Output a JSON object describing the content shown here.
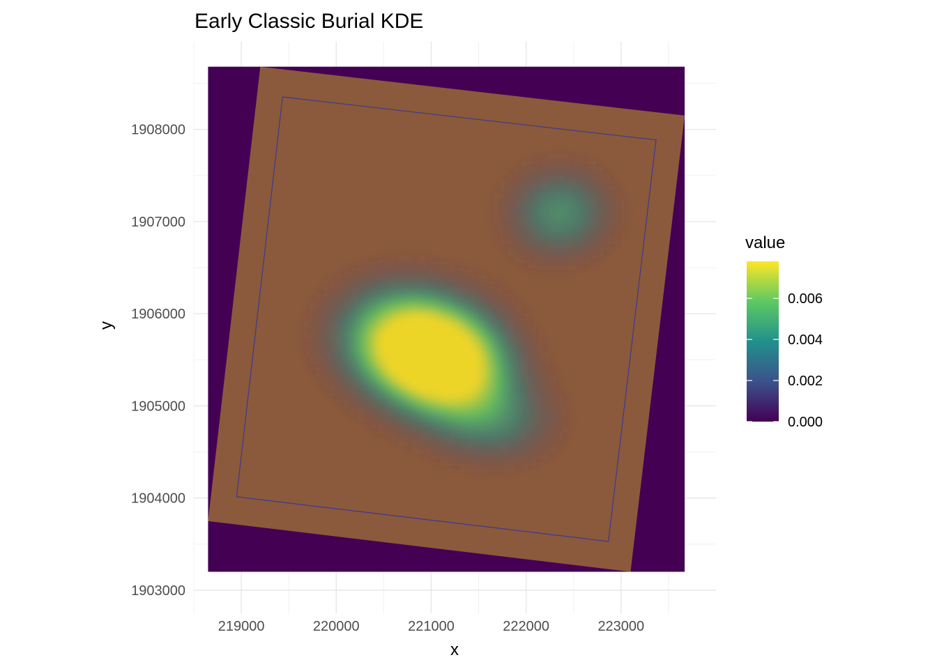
{
  "chart_data": {
    "type": "heatmap",
    "title": "Early Classic Burial KDE",
    "xlabel": "x",
    "ylabel": "y",
    "xlim": [
      218500,
      224000
    ],
    "ylim": [
      1902750,
      1908950
    ],
    "x_ticks": [
      219000,
      220000,
      221000,
      222000,
      223000
    ],
    "x_tick_labels": [
      "219000",
      "220000",
      "221000",
      "222000",
      "223000"
    ],
    "y_ticks": [
      1903000,
      1904000,
      1905000,
      1906000,
      1907000,
      1908000
    ],
    "y_tick_labels": [
      "1903000",
      "1904000",
      "1905000",
      "1906000",
      "1907000",
      "1908000"
    ],
    "grid": true,
    "raster_extent": {
      "xmin": 218650,
      "xmax": 223670,
      "ymin": 1903200,
      "ymax": 1908680
    },
    "basemap": {
      "description_shown": "rotated scanned archaeological site map overlay",
      "corners": [
        [
          219200,
          1908680
        ],
        [
          223670,
          1908150
        ],
        [
          223100,
          1903200
        ],
        [
          218650,
          1903750
        ]
      ],
      "tint": "#8b5a3c"
    },
    "kde_peaks": [
      {
        "x": 221150,
        "y": 1905450,
        "value": 0.0078,
        "sx": 520,
        "sy": 420
      },
      {
        "x": 220650,
        "y": 1905800,
        "value": 0.0055,
        "sx": 550,
        "sy": 450
      },
      {
        "x": 221700,
        "y": 1904800,
        "value": 0.0032,
        "sx": 500,
        "sy": 350
      },
      {
        "x": 222350,
        "y": 1907100,
        "value": 0.0045,
        "sx": 420,
        "sy": 380
      }
    ],
    "legend": {
      "title": "value",
      "placement": "right",
      "min": 0,
      "max": 0.0078,
      "ticks": [
        0.0,
        0.002,
        0.004,
        0.006
      ],
      "tick_labels": [
        "0.000",
        "0.002",
        "0.004",
        "0.006"
      ],
      "palette": [
        "#440154",
        "#3b528b",
        "#21918c",
        "#5ec962",
        "#fde725"
      ]
    },
    "background_fill": "#440154"
  }
}
